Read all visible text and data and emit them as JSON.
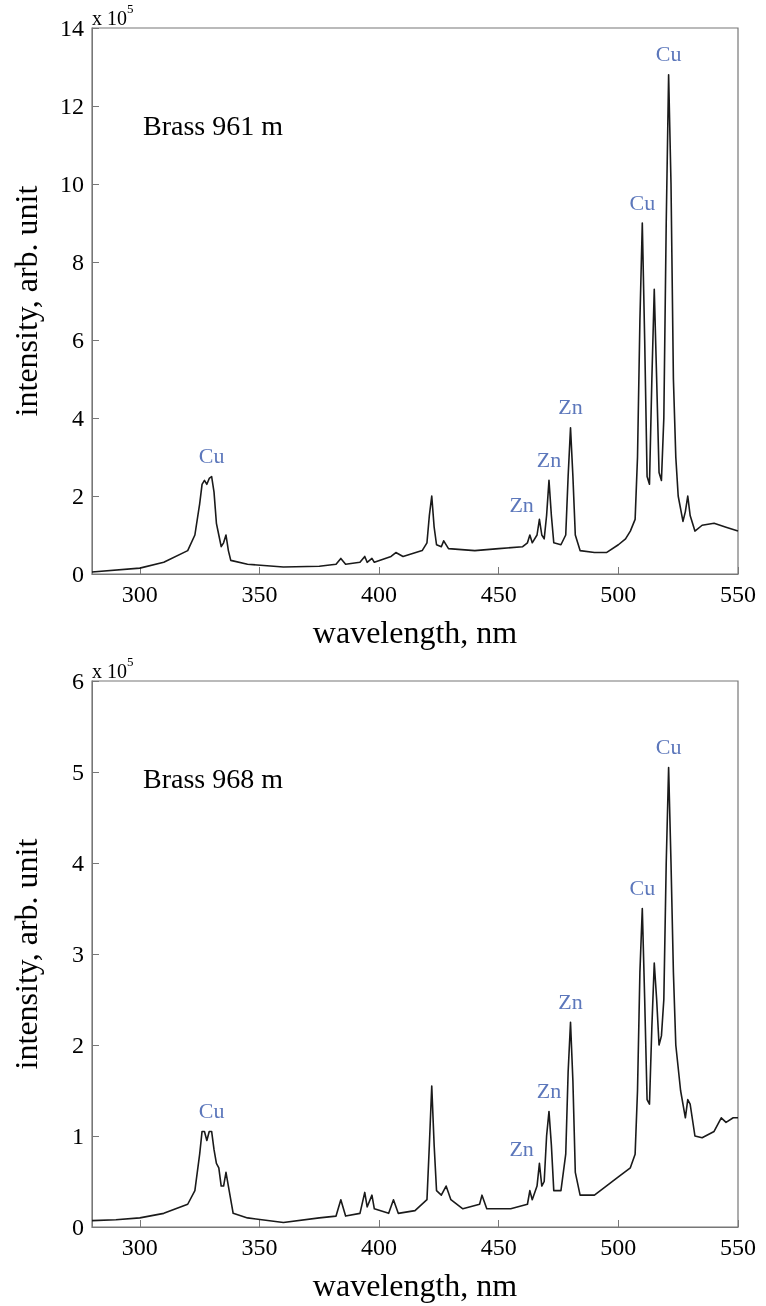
{
  "chart_data": [
    {
      "type": "line",
      "title": "Brass 961 m",
      "xlabel": "wavelength, nm",
      "ylabel": "intensity, arb. unit",
      "xlim": [
        280,
        550
      ],
      "xticks": [
        300,
        350,
        400,
        450,
        500,
        550
      ],
      "ylim": [
        0,
        14
      ],
      "yticks": [
        0,
        2,
        4,
        6,
        8,
        10,
        12,
        14
      ],
      "grid": false,
      "marker": "none",
      "line_style": "solid",
      "annotations": [
        "x 10$^{5}$",
        {
          "text": "Cu",
          "x": 330,
          "y": 2.5
        },
        {
          "text": "Zn",
          "x": 467,
          "y": 1.4
        },
        {
          "text": "Zn",
          "x": 471,
          "y": 2.4
        },
        {
          "text": "Zn",
          "x": 480,
          "y": 3.75
        },
        {
          "text": "Cu",
          "x": 510,
          "y": 9.0
        },
        {
          "text": "Cu",
          "x": 521,
          "y": 12.8
        }
      ],
      "series": [
        {
          "color": "#1a1a1a",
          "x": [
            280,
            300,
            310,
            320,
            323,
            325,
            326,
            327,
            328,
            329,
            330,
            331,
            332,
            333,
            334,
            335,
            336,
            337,
            338,
            345,
            360,
            375,
            382,
            384,
            386,
            392,
            394,
            395,
            397,
            398,
            405,
            407,
            410,
            418,
            420,
            421,
            422,
            423,
            424,
            426,
            427,
            429,
            440,
            450,
            460,
            462,
            463,
            464,
            466,
            467,
            468,
            469,
            470,
            471,
            472,
            473,
            476,
            478,
            479,
            480,
            481,
            482,
            484,
            490,
            495,
            500,
            503,
            505,
            507,
            508,
            509,
            510,
            511,
            512,
            513,
            514,
            515,
            516,
            517,
            518,
            519,
            520,
            521,
            522,
            523,
            524,
            525,
            527,
            528,
            529,
            530,
            532,
            535,
            540,
            545,
            550
          ],
          "values": [
            0.05,
            0.15,
            0.3,
            0.6,
            1.0,
            1.8,
            2.3,
            2.4,
            2.3,
            2.45,
            2.5,
            2.1,
            1.3,
            1.0,
            0.7,
            0.8,
            1.0,
            0.6,
            0.35,
            0.25,
            0.18,
            0.2,
            0.25,
            0.4,
            0.25,
            0.3,
            0.45,
            0.3,
            0.4,
            0.3,
            0.45,
            0.55,
            0.45,
            0.6,
            0.8,
            1.5,
            2.0,
            1.2,
            0.75,
            0.7,
            0.85,
            0.65,
            0.6,
            0.65,
            0.7,
            0.8,
            1.0,
            0.8,
            1.0,
            1.4,
            1.0,
            0.9,
            1.5,
            2.4,
            1.5,
            0.8,
            0.75,
            1.0,
            2.5,
            3.75,
            2.5,
            1.0,
            0.6,
            0.55,
            0.55,
            0.75,
            0.9,
            1.1,
            1.4,
            3.0,
            6.5,
            9.0,
            6.0,
            2.5,
            2.3,
            5.0,
            7.3,
            5.0,
            2.6,
            2.4,
            4.0,
            9.0,
            12.8,
            10.0,
            5.0,
            3.0,
            2.0,
            1.35,
            1.6,
            2.0,
            1.5,
            1.1,
            1.25,
            1.3,
            1.2,
            1.1
          ]
        }
      ]
    },
    {
      "type": "line",
      "title": "Brass 968 m",
      "xlabel": "wavelength, nm",
      "ylabel": "intensity, arb. unit",
      "xlim": [
        280,
        550
      ],
      "xticks": [
        300,
        350,
        400,
        450,
        500,
        550
      ],
      "ylim": [
        0,
        6
      ],
      "yticks": [
        0,
        1,
        2,
        3,
        4,
        5,
        6
      ],
      "grid": false,
      "marker": "none",
      "line_style": "solid",
      "annotations": [
        "x 10$^{5}$",
        {
          "text": "Cu",
          "x": 330,
          "y": 1.05
        },
        {
          "text": "Zn",
          "x": 467,
          "y": 0.7
        },
        {
          "text": "Zn",
          "x": 471,
          "y": 1.27
        },
        {
          "text": "Zn",
          "x": 480,
          "y": 2.25
        },
        {
          "text": "Cu",
          "x": 510,
          "y": 3.5
        },
        {
          "text": "Cu",
          "x": 521,
          "y": 5.05
        }
      ],
      "series": [
        {
          "color": "#1a1a1a",
          "x": [
            280,
            290,
            300,
            310,
            320,
            323,
            325,
            326,
            327,
            328,
            329,
            330,
            331,
            332,
            333,
            334,
            335,
            336,
            337,
            339,
            345,
            360,
            375,
            382,
            384,
            386,
            392,
            394,
            395,
            397,
            398,
            404,
            406,
            408,
            415,
            420,
            421,
            422,
            423,
            424,
            426,
            428,
            430,
            435,
            442,
            443,
            445,
            455,
            462,
            463,
            464,
            466,
            467,
            468,
            469,
            470,
            471,
            472,
            473,
            476,
            478,
            479,
            480,
            481,
            482,
            484,
            490,
            500,
            505,
            507,
            508,
            509,
            510,
            511,
            512,
            513,
            514,
            515,
            516,
            517,
            518,
            519,
            520,
            521,
            522,
            523,
            524,
            526,
            528,
            529,
            530,
            532,
            535,
            540,
            543,
            545,
            548,
            550
          ],
          "values": [
            0.07,
            0.08,
            0.1,
            0.15,
            0.25,
            0.4,
            0.8,
            1.05,
            1.05,
            0.95,
            1.05,
            1.05,
            0.85,
            0.7,
            0.65,
            0.45,
            0.45,
            0.6,
            0.45,
            0.15,
            0.1,
            0.05,
            0.1,
            0.12,
            0.3,
            0.12,
            0.15,
            0.38,
            0.22,
            0.35,
            0.2,
            0.15,
            0.3,
            0.15,
            0.18,
            0.3,
            0.9,
            1.55,
            0.9,
            0.4,
            0.35,
            0.45,
            0.3,
            0.2,
            0.25,
            0.35,
            0.2,
            0.2,
            0.25,
            0.4,
            0.3,
            0.45,
            0.7,
            0.45,
            0.5,
            1.0,
            1.27,
            0.9,
            0.4,
            0.4,
            0.8,
            1.7,
            2.25,
            1.6,
            0.6,
            0.35,
            0.35,
            0.55,
            0.65,
            0.8,
            1.5,
            2.8,
            3.5,
            2.5,
            1.4,
            1.35,
            2.2,
            2.9,
            2.5,
            2.0,
            2.1,
            2.5,
            4.0,
            5.05,
            4.0,
            2.8,
            2.0,
            1.5,
            1.2,
            1.4,
            1.35,
            1.0,
            0.98,
            1.05,
            1.2,
            1.15,
            1.2,
            1.2
          ]
        }
      ]
    }
  ]
}
